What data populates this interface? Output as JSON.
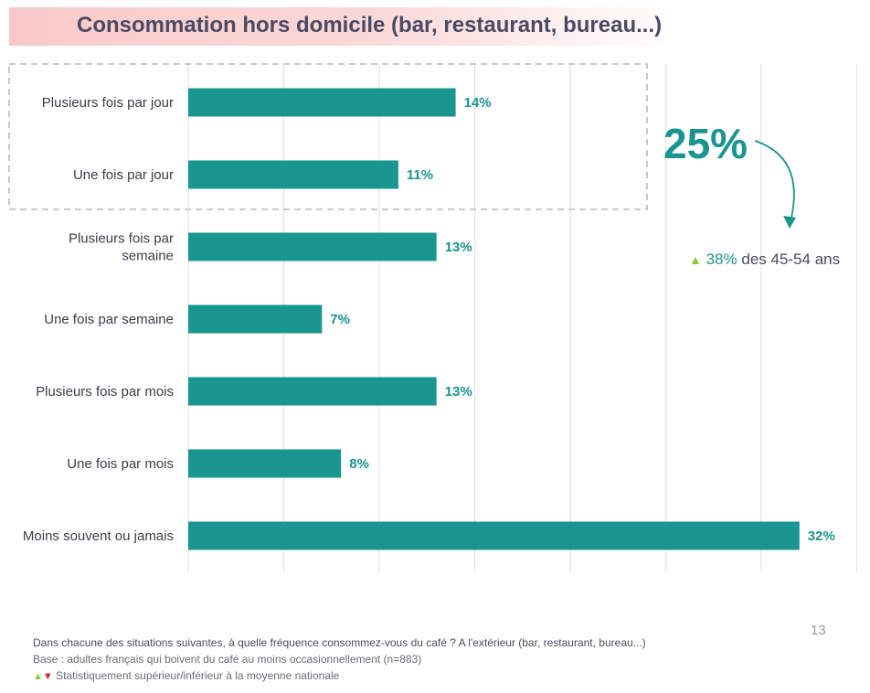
{
  "title": "Consommation hors domicile (bar, restaurant, bureau...)",
  "chart_data": {
    "type": "bar",
    "orientation": "horizontal",
    "categories": [
      "Plusieurs fois par jour",
      "Une fois par jour",
      "Plusieurs fois par semaine",
      "Une fois par semaine",
      "Plusieurs fois par mois",
      "Une fois par mois",
      "Moins souvent ou jamais"
    ],
    "values": [
      14,
      11,
      13,
      7,
      13,
      8,
      32
    ],
    "value_labels": [
      "14%",
      "11%",
      "13%",
      "7%",
      "13%",
      "8%",
      "32%"
    ],
    "unit": "%",
    "xlim": [
      0,
      35
    ],
    "grid": true,
    "bar_color": "#1a9690",
    "label_color": "#1a948e"
  },
  "callout": {
    "big_value": "25%",
    "arrow_symbol": "▲",
    "note_value": "38%",
    "note_text": "des 45-54 ans"
  },
  "page_number": "13",
  "footer": {
    "question": "Dans chacune des situations suivantes, à quelle fréquence consommez-vous du café ? A l'extérieur (bar, restaurant, bureau...)",
    "base": "Base : adultes français qui boivent du café au moins occasionnellement (n=883)",
    "legend_up": "▲",
    "legend_down": "▼",
    "legend_text": "Statistiquement supérieur/inférieur à la moyenne nationale"
  }
}
